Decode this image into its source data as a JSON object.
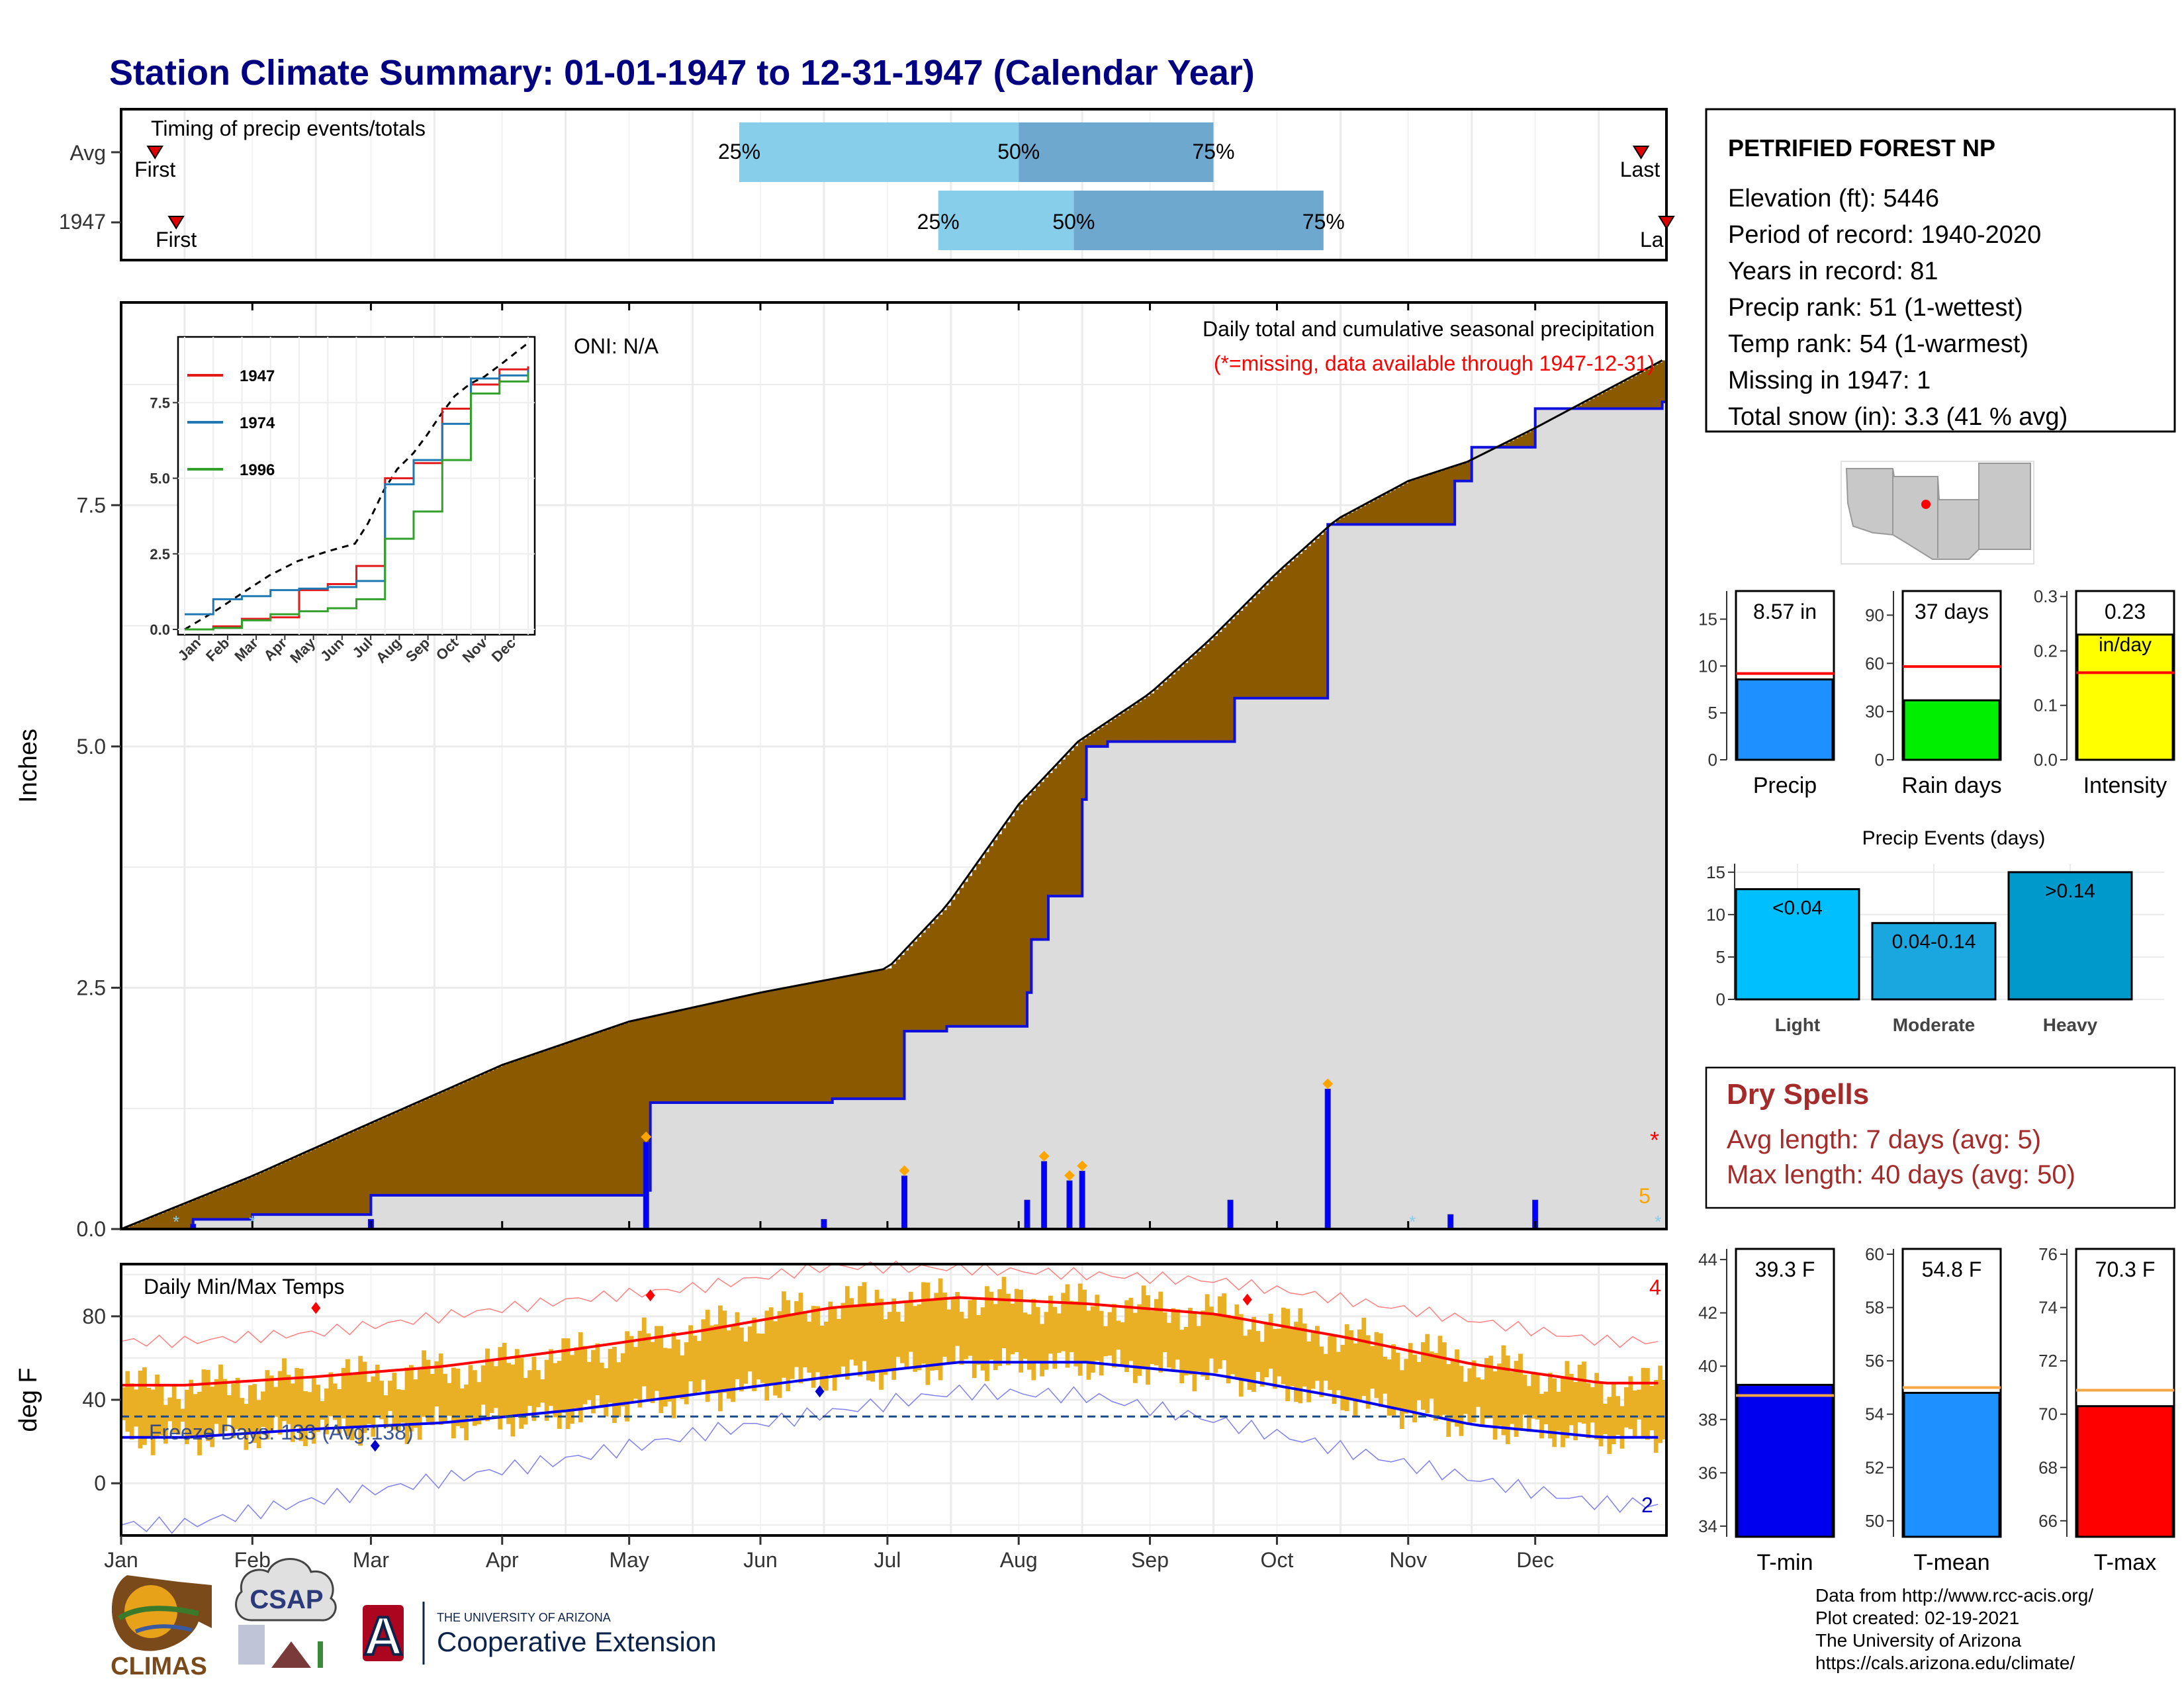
{
  "title": "Station Climate Summary: 01-01-1947 to 12-31-1947 (Calendar Year)",
  "months": [
    "Jan",
    "Feb",
    "Mar",
    "Apr",
    "May",
    "Jun",
    "Jul",
    "Aug",
    "Sep",
    "Oct",
    "Nov",
    "Dec"
  ],
  "timing": {
    "label": "Timing of precip events/totals",
    "rows": [
      {
        "label": "Avg",
        "first": "First",
        "last": "Last",
        "p25": "25%",
        "p50": "50%",
        "p75": "75%",
        "first_day": 8,
        "last_day": 359,
        "q25_day": 146,
        "q50_day": 212,
        "q75_day": 258
      },
      {
        "label": "1947",
        "first": "First",
        "last": "La",
        "p25": "25%",
        "p50": "50%",
        "p75": "75%",
        "first_day": 13,
        "last_day": 365,
        "q25_day": 193,
        "q50_day": 225,
        "q75_day": 284
      }
    ]
  },
  "precip": {
    "ylabel": "Inches",
    "yticks": [
      "0.0",
      "2.5",
      "5.0",
      "7.5"
    ],
    "caption": "Daily total and cumulative seasonal precipitation",
    "missing_note": "(*=missing, data available through 1947-12-31)",
    "oni": "ONI: N/A",
    "missing_marker": "*",
    "missing_count": "5",
    "colors": {
      "above_avg": "#8B5A00",
      "below_avg": "#0a8a0a",
      "cumulative_1947": "#1010dd",
      "area_fill": "#dcdcdc"
    }
  },
  "inset": {
    "yticks": [
      "0.0",
      "2.5",
      "5.0",
      "7.5"
    ],
    "months": [
      "Jan",
      "Feb",
      "Mar",
      "Apr",
      "May",
      "Jun",
      "Jul",
      "Aug",
      "Sep",
      "Oct",
      "Nov",
      "Dec"
    ],
    "legend": [
      {
        "name": "1947",
        "color": "#e31a1c"
      },
      {
        "name": "1974",
        "color": "#1f78b4"
      },
      {
        "name": "1996",
        "color": "#33a02c"
      }
    ]
  },
  "temps": {
    "ylabel": "deg F",
    "label": "Daily Min/Max Temps",
    "yticks": [
      "0",
      "40",
      "80"
    ],
    "freeze": "Freeze Days: 133 (Avg:138)",
    "count_red": "4",
    "count_blue": "2"
  },
  "station": {
    "name": "PETRIFIED FOREST NP",
    "lines": [
      "Elevation (ft): 5446",
      "Period of record: 1940-2020",
      "Years in record: 81",
      "Precip rank: 51 (1-wettest)",
      "Temp rank: 54 (1-warmest)",
      "Missing in 1947: 1",
      "Total snow (in): 3.3 (41 % avg)"
    ]
  },
  "mini_bars": [
    {
      "value_label": "8.57 in",
      "label": "Precip",
      "yticks": [
        "0",
        "5",
        "10",
        "15"
      ],
      "ymax": 18,
      "value": 8.57,
      "avg": 9.2,
      "color": "#1e90ff"
    },
    {
      "value_label": "37 days",
      "label": "Rain days",
      "yticks": [
        "0",
        "30",
        "60",
        "90"
      ],
      "ymax": 105,
      "value": 37,
      "avg": 58,
      "color": "#00ee00"
    },
    {
      "value_label": "0.23",
      "value_label2": "in/day",
      "label": "Intensity",
      "yticks": [
        "0.0",
        "0.1",
        "0.2",
        "0.3"
      ],
      "ymax": 0.31,
      "value": 0.23,
      "avg": 0.16,
      "color": "#ffff00"
    }
  ],
  "events": {
    "title": "Precip Events (days)",
    "yticks": [
      "0",
      "5",
      "10",
      "15"
    ],
    "bars": [
      {
        "label": "Light",
        "value_label": "<0.04",
        "value": 13,
        "color": "#00bfff"
      },
      {
        "label": "Moderate",
        "value_label": "0.04-0.14",
        "value": 9,
        "color": "#1aa7e0"
      },
      {
        "label": "Heavy",
        "value_label": ">0.14",
        "value": 15,
        "color": "#0099cc"
      }
    ]
  },
  "dry_spells": {
    "title": "Dry Spells",
    "avg": "Avg length: 7 days (avg: 5)",
    "max": "Max length: 40 days (avg: 50)"
  },
  "temp_bars": [
    {
      "value_label": "39.3 F",
      "label": "T-min",
      "yticks": [
        "34",
        "36",
        "38",
        "40",
        "42",
        "44"
      ],
      "ymin": 33.6,
      "ymax": 44.4,
      "value": 39.3,
      "avg": 38.9,
      "color": "#0000ee"
    },
    {
      "value_label": "54.8 F",
      "label": "T-mean",
      "yticks": [
        "50",
        "52",
        "54",
        "56",
        "58",
        "60"
      ],
      "ymin": 49.4,
      "ymax": 60.2,
      "value": 54.8,
      "avg": 55.0,
      "color": "#1e90ff"
    },
    {
      "value_label": "70.3 F",
      "label": "T-max",
      "yticks": [
        "66",
        "68",
        "70",
        "72",
        "74",
        "76"
      ],
      "ymin": 65.4,
      "ymax": 76.2,
      "value": 70.3,
      "avg": 70.9,
      "color": "#ff0000"
    }
  ],
  "footer": {
    "credits": [
      "Data from http://www.rcc-acis.org/",
      "Plot created: 02-19-2021",
      "The University of Arizona",
      "https://cals.arizona.edu/climate/"
    ],
    "climas": "CLIMAS",
    "csap": "CSAP",
    "ua_small": "THE UNIVERSITY OF ARIZONA",
    "ua_big": "Cooperative Extension",
    "ua_letter": "A"
  },
  "chart_data": [
    {
      "type": "area",
      "title": "Daily total and cumulative seasonal precipitation",
      "ylabel": "Inches",
      "ylim": [
        0,
        9.6
      ],
      "cumulative_1947": {
        "x": [
          "Jan 1",
          "Jan 18",
          "Feb 1",
          "Mar 1",
          "May 5",
          "May 6",
          "Jun 18",
          "Jul 5",
          "Jul 15",
          "Aug 3",
          "Aug 4",
          "Aug 8",
          "Aug 16",
          "Aug 17",
          "Aug 22",
          "Sep 21",
          "Oct 12",
          "Oct 13",
          "Nov 12",
          "Nov 16",
          "Dec 1",
          "Dec 31"
        ],
        "y": [
          0.0,
          0.1,
          0.15,
          0.35,
          0.4,
          1.31,
          1.35,
          2.05,
          2.1,
          2.45,
          3.0,
          3.45,
          4.45,
          5.0,
          5.05,
          5.5,
          5.5,
          7.3,
          7.75,
          8.1,
          8.5,
          8.57
        ]
      },
      "average_cumulative": {
        "x": [
          "Jan 1",
          "Feb 1",
          "Mar 1",
          "Apr 1",
          "May 1",
          "Jun 1",
          "Jul 1",
          "Jul 15",
          "Aug 1",
          "Aug 15",
          "Sep 1",
          "Sep 15",
          "Oct 1",
          "Oct 15",
          "Nov 1",
          "Nov 15",
          "Dec 1",
          "Dec 31"
        ],
        "y": [
          0.0,
          0.55,
          1.1,
          1.7,
          2.15,
          2.45,
          2.7,
          3.35,
          4.4,
          5.05,
          5.55,
          6.1,
          6.8,
          7.35,
          7.75,
          7.95,
          8.3,
          9.0
        ]
      },
      "daily_precip_days": [
        "Jan 18",
        "Mar 1",
        "May 5",
        "Jun 16",
        "Jul 5",
        "Aug 3",
        "Aug 7",
        "Aug 13",
        "Aug 16",
        "Sep 20",
        "Oct 13",
        "Nov 11",
        "Dec 1"
      ],
      "daily_precip_values": [
        0.05,
        0.1,
        0.9,
        0.1,
        0.55,
        0.3,
        0.7,
        0.5,
        0.6,
        0.3,
        1.45,
        0.15,
        0.3
      ]
    },
    {
      "type": "line",
      "title": "Cumulative precipitation analog years (inset)",
      "ylim": [
        0,
        9.5
      ],
      "series": [
        {
          "name": "1947",
          "x_month": [
            0,
            1,
            2,
            3,
            4,
            5,
            6,
            7,
            8,
            9,
            10,
            11,
            12
          ],
          "values": [
            0,
            0.1,
            0.35,
            0.4,
            1.3,
            1.5,
            2.1,
            5.0,
            5.5,
            7.3,
            8.1,
            8.6,
            8.7
          ]
        },
        {
          "name": "1974",
          "x_month": [
            0,
            1,
            2,
            3,
            4,
            5,
            6,
            7,
            8,
            9,
            10,
            11,
            12
          ],
          "values": [
            0.5,
            1.0,
            1.1,
            1.3,
            1.35,
            1.4,
            1.6,
            4.8,
            5.6,
            6.8,
            8.3,
            8.4,
            8.6
          ]
        },
        {
          "name": "1996",
          "x_month": [
            0,
            1,
            2,
            3,
            4,
            5,
            6,
            7,
            8,
            9,
            10,
            11,
            12
          ],
          "values": [
            0,
            0.05,
            0.3,
            0.5,
            0.6,
            0.7,
            1.0,
            3.0,
            3.9,
            5.6,
            7.8,
            8.2,
            8.5
          ]
        }
      ]
    },
    {
      "type": "line",
      "title": "Daily Min/Max Temps",
      "ylabel": "deg F",
      "ylim": [
        -25,
        105
      ],
      "x_month_mid": [
        0.5,
        1.5,
        2.5,
        3.5,
        4.5,
        5.5,
        6.5,
        7.5,
        8.5,
        9.5,
        10.5,
        11.5
      ],
      "series": [
        {
          "name": "avg max",
          "values": [
            47,
            51,
            56,
            64,
            73,
            84,
            89,
            86,
            81,
            70,
            57,
            48
          ]
        },
        {
          "name": "avg min",
          "values": [
            22,
            26,
            29,
            35,
            43,
            51,
            58,
            58,
            52,
            41,
            28,
            22
          ]
        },
        {
          "name": "record high",
          "values": [
            68,
            72,
            80,
            88,
            94,
            104,
            103,
            100,
            97,
            88,
            78,
            68
          ]
        },
        {
          "name": "record low",
          "values": [
            -20,
            -8,
            2,
            12,
            24,
            34,
            44,
            42,
            30,
            16,
            2,
            -10
          ]
        },
        {
          "name": "1947 max",
          "values": [
            46,
            50,
            54,
            62,
            74,
            86,
            89,
            86,
            82,
            70,
            58,
            47
          ]
        },
        {
          "name": "1947 min",
          "values": [
            22,
            25,
            28,
            33,
            42,
            51,
            57,
            57,
            52,
            40,
            28,
            22
          ]
        }
      ],
      "freeze_threshold": 32
    },
    {
      "type": "bar",
      "categories": [
        "Precip"
      ],
      "values": [
        8.57
      ],
      "avg": 9.2,
      "ylim": [
        0,
        18
      ]
    },
    {
      "type": "bar",
      "categories": [
        "Rain days"
      ],
      "values": [
        37
      ],
      "avg": 58,
      "ylim": [
        0,
        105
      ]
    },
    {
      "type": "bar",
      "categories": [
        "Intensity"
      ],
      "values": [
        0.23
      ],
      "avg": 0.16,
      "ylim": [
        0,
        0.31
      ]
    },
    {
      "type": "bar",
      "title": "Precip Events (days)",
      "categories": [
        "Light",
        "Moderate",
        "Heavy"
      ],
      "values": [
        13,
        9,
        15
      ],
      "ylim": [
        0,
        16
      ]
    },
    {
      "type": "bar",
      "categories": [
        "T-min"
      ],
      "values": [
        39.3
      ],
      "avg": 38.9,
      "ylim": [
        33.6,
        44.4
      ]
    },
    {
      "type": "bar",
      "categories": [
        "T-mean"
      ],
      "values": [
        54.8
      ],
      "avg": 55.0,
      "ylim": [
        49.4,
        60.2
      ]
    },
    {
      "type": "bar",
      "categories": [
        "T-max"
      ],
      "values": [
        70.3
      ],
      "avg": 70.9,
      "ylim": [
        65.4,
        76.2
      ]
    }
  ]
}
